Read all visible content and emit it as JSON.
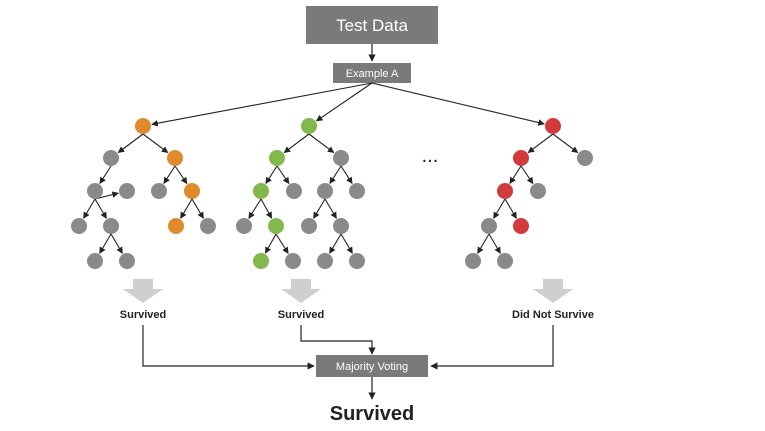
{
  "colors": {
    "box": "#7a7a7a",
    "box_text": "#ffffff",
    "node_gray": "#8a8a8a",
    "tree1_path": "#e08a2c",
    "tree2_path": "#82b84c",
    "tree3_path": "#d23b3b",
    "arrow": "#222222",
    "down_arrow": "#cfcfcf",
    "text": "#222222"
  },
  "top_box": {
    "label": "Test Data"
  },
  "example_box": {
    "label": "Example A"
  },
  "ellipsis": "...",
  "trees": [
    {
      "name": "tree-1",
      "path_color_key": "tree1_path",
      "result": "Survived"
    },
    {
      "name": "tree-2",
      "path_color_key": "tree2_path",
      "result": "Survived"
    },
    {
      "name": "tree-3",
      "path_color_key": "tree3_path",
      "result": "Did Not Survive"
    }
  ],
  "voting_box": {
    "label": "Majority Voting"
  },
  "final_result": "Survived"
}
